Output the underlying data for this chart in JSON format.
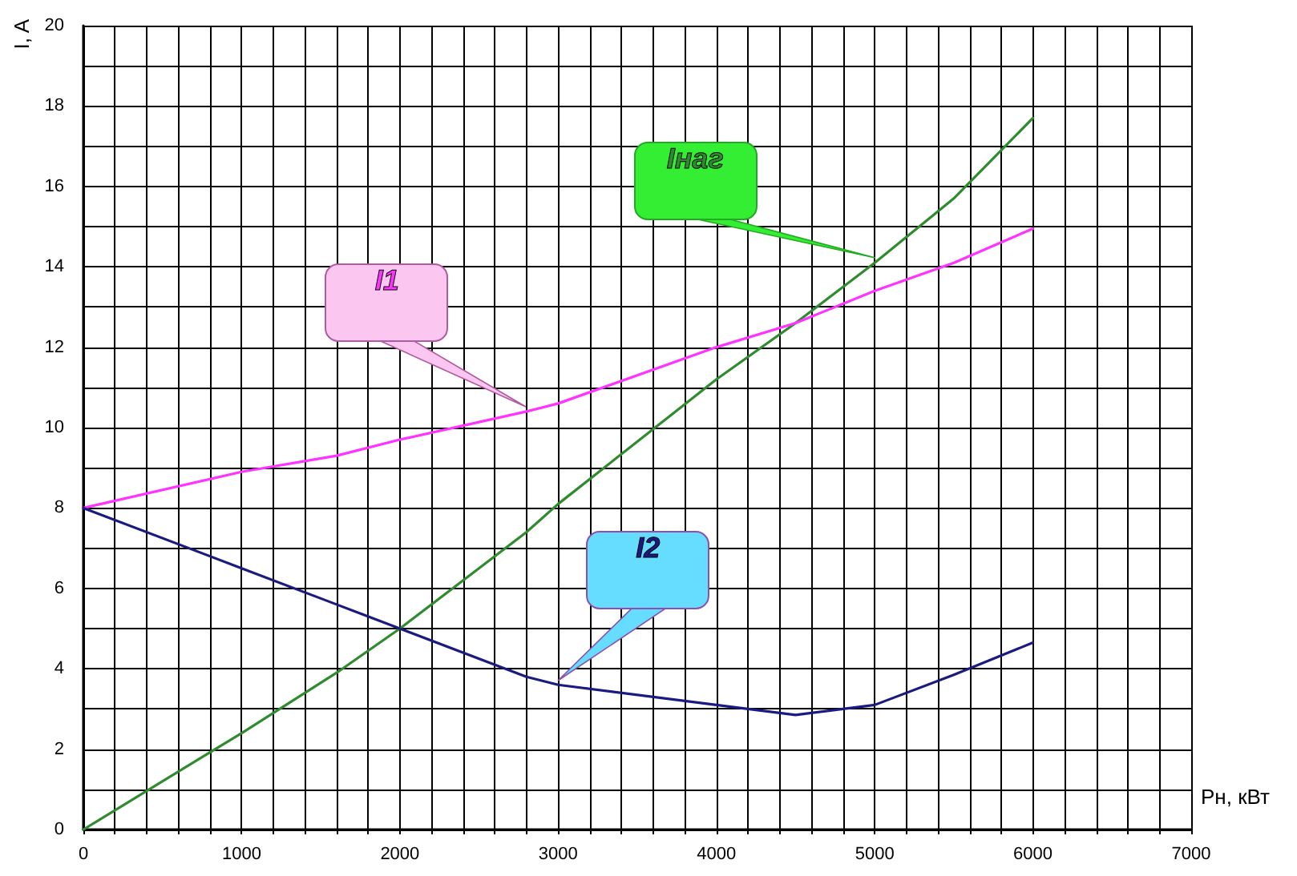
{
  "chart_data": {
    "type": "line",
    "xlabel": "Рн, кВт",
    "ylabel": "I, A",
    "x": [
      0,
      1000,
      1600,
      2000,
      2800,
      3000,
      4000,
      4500,
      5000,
      5500,
      6000
    ],
    "series": [
      {
        "name": "Iнаг",
        "color": "#2e8b2e",
        "values": [
          0,
          2.4,
          3.9,
          5.0,
          7.4,
          8.1,
          11.2,
          12.6,
          14.1,
          15.7,
          17.7
        ]
      },
      {
        "name": "I1",
        "color": "#ff33ff",
        "values": [
          8,
          8.9,
          9.3,
          9.7,
          10.4,
          10.6,
          12.0,
          12.6,
          13.4,
          14.1,
          14.95
        ]
      },
      {
        "name": "I2",
        "color": "#1a1a80",
        "values": [
          8,
          6.5,
          5.6,
          5.0,
          3.8,
          3.6,
          3.1,
          2.85,
          3.1,
          3.85,
          4.65
        ]
      }
    ],
    "xlim": [
      0,
      7000
    ],
    "xticks": [
      0,
      {
        "value": 200,
        "label": null
      },
      {
        "value": 400,
        "label": null
      },
      {
        "value": 600,
        "label": null
      },
      {
        "value": 800,
        "label": null
      },
      1000,
      {
        "value": 1200,
        "label": null
      },
      {
        "value": 1400,
        "label": null
      },
      {
        "value": 1600,
        "label": null
      },
      {
        "value": 1800,
        "label": null
      },
      2000,
      {
        "value": 2200,
        "label": null
      },
      {
        "value": 2400,
        "label": null
      },
      {
        "value": 2600,
        "label": null
      },
      {
        "value": 2800,
        "label": null
      },
      3000,
      {
        "value": 3200,
        "label": null
      },
      {
        "value": 3400,
        "label": null
      },
      {
        "value": 3600,
        "label": null
      },
      {
        "value": 3800,
        "label": null
      },
      4000,
      {
        "value": 4200,
        "label": null
      },
      {
        "value": 4400,
        "label": null
      },
      {
        "value": 4600,
        "label": null
      },
      {
        "value": 4800,
        "label": null
      },
      5000,
      {
        "value": 5200,
        "label": null
      },
      {
        "value": 5400,
        "label": null
      },
      {
        "value": 5600,
        "label": null
      },
      {
        "value": 5800,
        "label": null
      },
      6000,
      {
        "value": 6200,
        "label": null
      },
      {
        "value": 6400,
        "label": null
      },
      {
        "value": 6600,
        "label": null
      },
      {
        "value": 6800,
        "label": null
      },
      7000
    ],
    "ylim": [
      0,
      20
    ],
    "yticks": [
      0,
      {
        "value": 1,
        "label": null
      },
      2,
      {
        "value": 3,
        "label": null
      },
      4,
      {
        "value": 5,
        "label": null
      },
      6,
      {
        "value": 7,
        "label": null
      },
      8,
      {
        "value": 9,
        "label": null
      },
      10,
      {
        "value": 11,
        "label": null
      },
      12,
      {
        "value": 13,
        "label": null
      },
      14,
      {
        "value": 15,
        "label": null
      },
      16,
      {
        "value": 17,
        "label": null
      },
      18,
      {
        "value": 19,
        "label": null
      },
      20
    ],
    "grid": true,
    "legend": false,
    "marker": "none",
    "line_style": "solid"
  }
}
